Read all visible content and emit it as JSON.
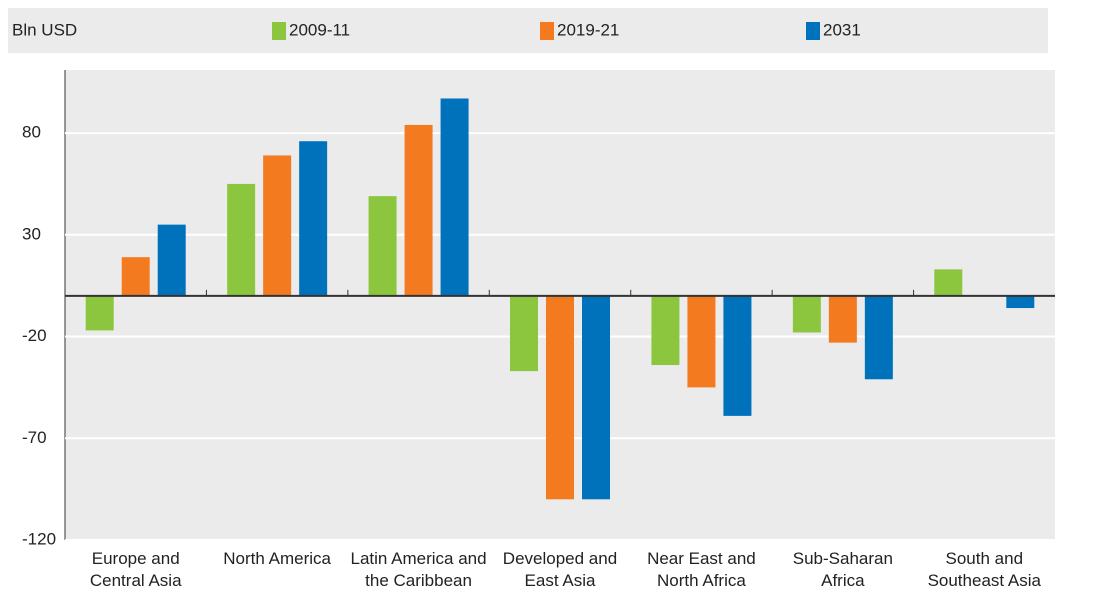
{
  "chart_data": {
    "type": "bar",
    "unit_label": "Bln USD",
    "categories": [
      "Europe and Central Asia",
      "North America",
      "Latin America and the Caribbean",
      "Developed and East Asia",
      "Near East and North Africa",
      "Sub-Saharan Africa",
      "South and Southeast Asia"
    ],
    "series": [
      {
        "name": "2009-11",
        "color": "#8cc63f",
        "values": [
          -17,
          55,
          49,
          -37,
          -34,
          -18,
          13
        ]
      },
      {
        "name": "2019-21",
        "color": "#f47a20",
        "values": [
          19,
          69,
          84,
          -100,
          -45,
          -23,
          null
        ]
      },
      {
        "name": "2031",
        "color": "#0072bc",
        "values": [
          35,
          76,
          97,
          -100,
          -59,
          -41,
          -6
        ]
      }
    ],
    "ylim": [
      -120,
      111
    ],
    "yticks": [
      -120,
      -70,
      -20,
      30,
      80
    ],
    "grid": true
  }
}
